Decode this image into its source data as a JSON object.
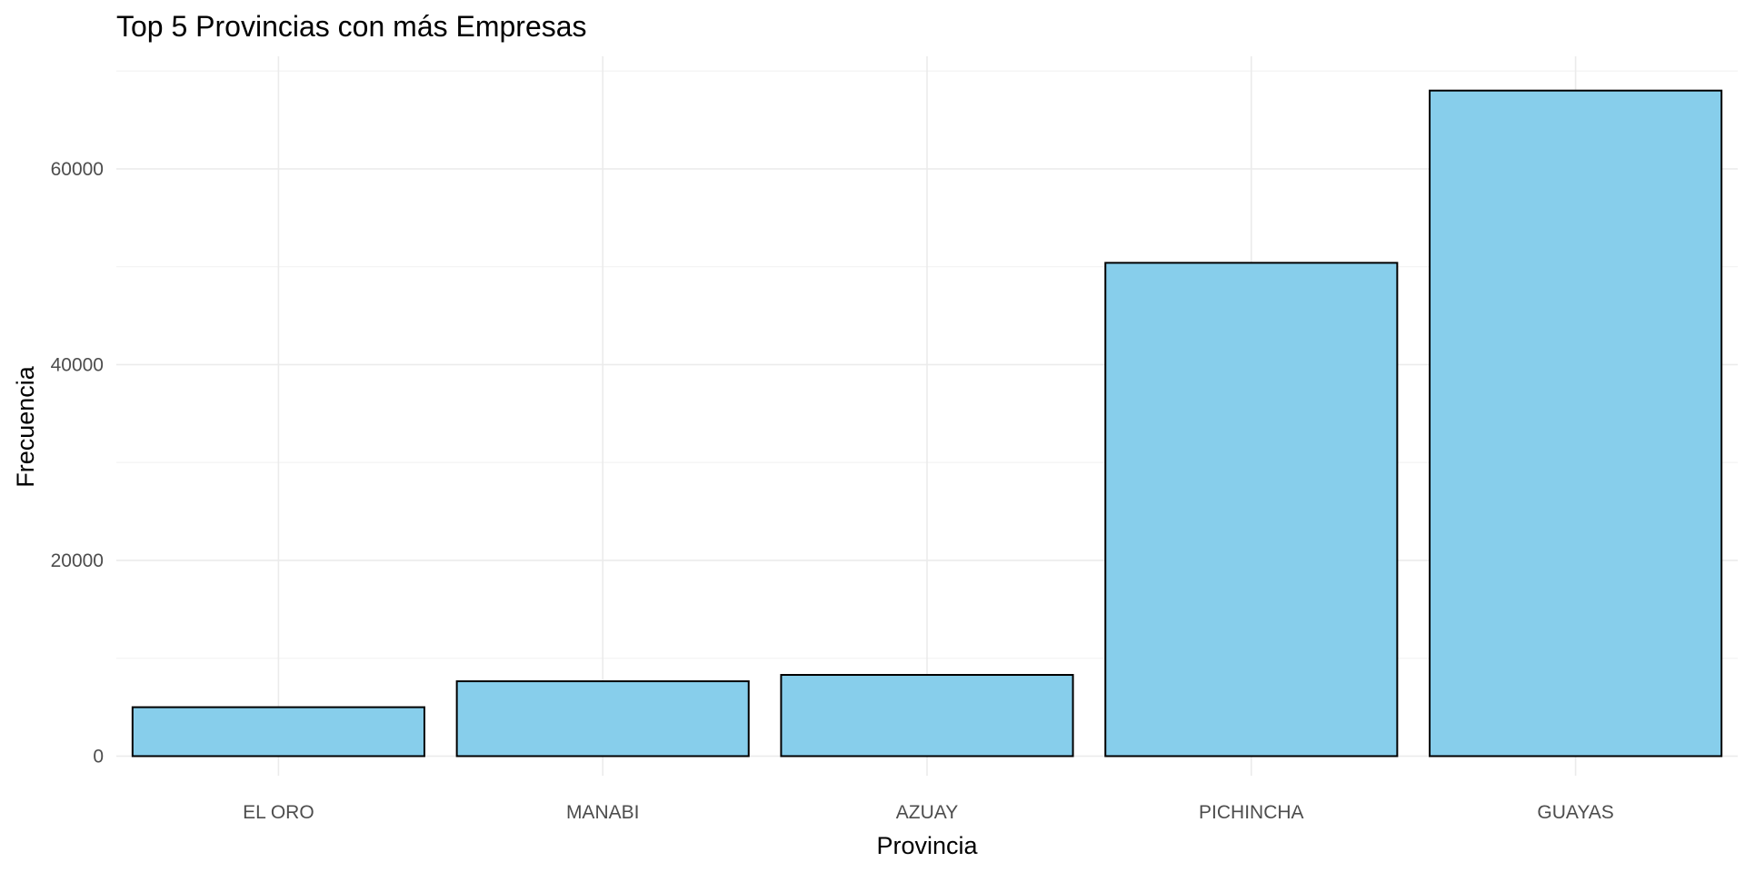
{
  "chart_data": {
    "type": "bar",
    "title": "Top 5 Provincias con más Empresas",
    "xlabel": "Provincia",
    "ylabel": "Frecuencia",
    "categories": [
      "EL ORO",
      "MANABI",
      "AZUAY",
      "PICHINCHA",
      "GUAYAS"
    ],
    "values": [
      5000,
      7650,
      8300,
      50400,
      68000
    ],
    "ylim": [
      -2000,
      71500
    ],
    "yticks": [
      0,
      20000,
      40000,
      60000
    ],
    "ytick_labels": [
      "0",
      "20000",
      "40000",
      "60000"
    ],
    "grid": true,
    "legend": "none",
    "colors": {
      "bar_fill": "#87ceeb",
      "bar_stroke": "#000000",
      "grid_major": "#ebebeb",
      "grid_minor": "#f2f2f2",
      "tick_text": "#4d4d4d",
      "title_text": "#000000"
    }
  }
}
